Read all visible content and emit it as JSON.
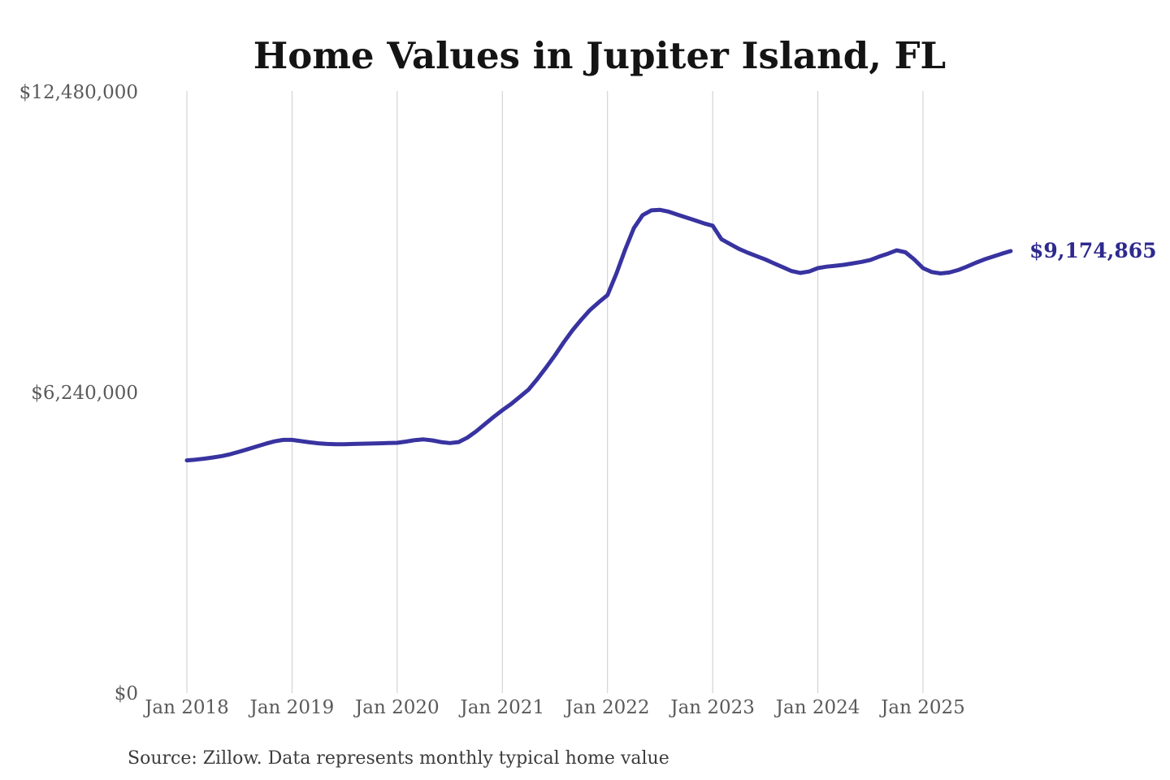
{
  "chart": {
    "title": "Home Values in Jupiter Island, FL",
    "source_note": "Source: Zillow. Data represents monthly typical home value",
    "current_value_label": "$9,174,865",
    "colors": {
      "line": "#3833a0",
      "value_label": "#2e2a8e",
      "axis_text": "#5a5a5a",
      "title_text": "#141414",
      "source_text": "#3c3c3c",
      "gridline": "#cccccc",
      "background": "#ffffff"
    }
  },
  "chart_data": {
    "type": "line",
    "title": "Home Values in Jupiter Island, FL",
    "xlabel": "",
    "ylabel": "",
    "x_start_month": "2018-01",
    "x_end_month": "2025-11",
    "frequency": "monthly",
    "ylim": [
      0,
      12480000
    ],
    "grid": "vertical-only",
    "legend": "none",
    "x_ticks": [
      "Jan 2018",
      "Jan 2019",
      "Jan 2020",
      "Jan 2021",
      "Jan 2022",
      "Jan 2023",
      "Jan 2024",
      "Jan 2025"
    ],
    "y_ticks": [
      {
        "label": "$0",
        "value": 0
      },
      {
        "label": "$6,240,000",
        "value": 6240000
      },
      {
        "label": "$12,480,000",
        "value": 12480000
      }
    ],
    "series": [
      {
        "name": "Monthly typical home value",
        "values": [
          4830000,
          4845000,
          4865000,
          4890000,
          4920000,
          4960000,
          5010000,
          5065000,
          5120000,
          5175000,
          5225000,
          5255000,
          5255000,
          5230000,
          5205000,
          5185000,
          5170000,
          5165000,
          5165000,
          5170000,
          5175000,
          5180000,
          5185000,
          5190000,
          5195000,
          5220000,
          5250000,
          5265000,
          5245000,
          5210000,
          5190000,
          5210000,
          5300000,
          5430000,
          5580000,
          5730000,
          5870000,
          6000000,
          6150000,
          6300000,
          6520000,
          6760000,
          7010000,
          7280000,
          7530000,
          7750000,
          7950000,
          8110000,
          8260000,
          8700000,
          9200000,
          9650000,
          9920000,
          10020000,
          10030000,
          9990000,
          9930000,
          9870000,
          9810000,
          9750000,
          9700000,
          9420000,
          9320000,
          9220000,
          9140000,
          9070000,
          9000000,
          8920000,
          8840000,
          8760000,
          8720000,
          8750000,
          8820000,
          8850000,
          8870000,
          8890000,
          8920000,
          8950000,
          8990000,
          9060000,
          9120000,
          9190000,
          9150000,
          9000000,
          8820000,
          8740000,
          8710000,
          8730000,
          8780000,
          8850000,
          8930000,
          9000000,
          9060000,
          9120000,
          9174865
        ]
      }
    ],
    "annotations": [
      {
        "text": "$9,174,865",
        "position": "end-of-line",
        "value": 9174865
      }
    ]
  }
}
